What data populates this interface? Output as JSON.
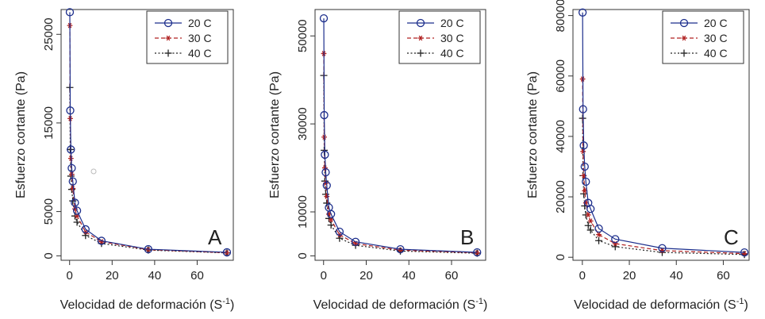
{
  "figure": {
    "panels": [
      {
        "label": "A",
        "ylabel": "Esfuerzo cortante (Pa)",
        "xlabel": "Velocidad de deformación (S",
        "xlabel_sup": "-1",
        "xlabel_end": ")"
      },
      {
        "label": "B",
        "ylabel": "Esfuerzo cortante (Pa)",
        "xlabel": "Velocidad de deformación (S",
        "xlabel_sup": "-1",
        "xlabel_end": ")"
      },
      {
        "label": "C",
        "ylabel": "Esfuerzo cortante (Pa)",
        "xlabel": "Velocidad de deformación (S",
        "xlabel_sup": "-1",
        "xlabel_end": ")"
      }
    ],
    "legend": [
      "20 C",
      "30 C",
      "40 C"
    ]
  },
  "chart_data": [
    {
      "type": "line",
      "label": "A",
      "xlabel": "Velocidad de deformación (S-1)",
      "ylabel": "Esfuerzo cortante (Pa)",
      "xlim": [
        -4,
        77
      ],
      "ylim": [
        -500,
        27800
      ],
      "xticks": [
        0,
        20,
        40,
        60
      ],
      "yticks": [
        0,
        5000,
        15000,
        25000
      ],
      "legend_position": "top-right",
      "grid": false,
      "series": [
        {
          "name": "20 C",
          "color": "#1c2e8c",
          "marker": "circle",
          "dash": "solid",
          "x": [
            0.1,
            0.3,
            0.6,
            1,
            1.5,
            2.5,
            3.5,
            7.5,
            15,
            37,
            74
          ],
          "y": [
            27500,
            16400,
            12000,
            9900,
            8400,
            6000,
            5100,
            3000,
            1700,
            750,
            400
          ]
        },
        {
          "name": "30 C",
          "color": "#b02020",
          "marker": "star",
          "dash": "dashed",
          "x": [
            0.1,
            0.3,
            0.6,
            1,
            1.5,
            2.5,
            3.5,
            7.5,
            15,
            37,
            74
          ],
          "y": [
            26000,
            15500,
            11000,
            9200,
            7600,
            5300,
            4500,
            2700,
            1600,
            700,
            350
          ]
        },
        {
          "name": "40 C",
          "color": "#222222",
          "marker": "plus",
          "dash": "dotted",
          "x": [
            0.1,
            0.3,
            0.6,
            1,
            1.5,
            2.5,
            3.5,
            7.5,
            15,
            37,
            74
          ],
          "y": [
            19000,
            12000,
            9000,
            7500,
            6200,
            4500,
            3800,
            2300,
            1400,
            650,
            330
          ]
        }
      ]
    },
    {
      "type": "line",
      "label": "B",
      "xlabel": "Velocidad de deformación (S-1)",
      "ylabel": "Esfuerzo cortante (Pa)",
      "xlim": [
        -4,
        76
      ],
      "ylim": [
        -1000,
        56000
      ],
      "xticks": [
        0,
        20,
        40,
        60
      ],
      "yticks": [
        0,
        10000,
        30000,
        50000
      ],
      "legend_position": "top-right",
      "grid": false,
      "series": [
        {
          "name": "20 C",
          "color": "#1c2e8c",
          "marker": "circle",
          "dash": "solid",
          "x": [
            0.1,
            0.3,
            0.6,
            1,
            1.5,
            2.5,
            3.5,
            7.5,
            15,
            36,
            72
          ],
          "y": [
            54000,
            32000,
            23000,
            19000,
            16000,
            11000,
            9500,
            5500,
            3200,
            1500,
            800
          ]
        },
        {
          "name": "30 C",
          "color": "#b02020",
          "marker": "star",
          "dash": "dashed",
          "x": [
            0.1,
            0.3,
            0.6,
            1,
            1.5,
            2.5,
            3.5,
            7.5,
            15,
            36,
            72
          ],
          "y": [
            46000,
            27000,
            20000,
            16500,
            13500,
            9500,
            8200,
            4800,
            2800,
            1300,
            700
          ]
        },
        {
          "name": "40 C",
          "color": "#222222",
          "marker": "plus",
          "dash": "dotted",
          "x": [
            0.1,
            0.3,
            0.6,
            1,
            1.5,
            2.5,
            3.5,
            7.5,
            15,
            36,
            72
          ],
          "y": [
            41000,
            24000,
            17000,
            14000,
            12000,
            8500,
            7000,
            4000,
            2400,
            1100,
            600
          ]
        }
      ]
    },
    {
      "type": "line",
      "label": "C",
      "xlabel": "Velocidad de deformación (S-1)",
      "ylabel": "Esfuerzo cortante (Pa)",
      "xlim": [
        -4,
        71
      ],
      "ylim": [
        -1000,
        82000
      ],
      "xticks": [
        0,
        20,
        40,
        60
      ],
      "yticks": [
        0,
        20000,
        40000,
        60000,
        80000
      ],
      "legend_position": "top-right",
      "grid": false,
      "series": [
        {
          "name": "20 C",
          "color": "#1c2e8c",
          "marker": "circle",
          "dash": "solid",
          "x": [
            0.1,
            0.3,
            0.6,
            1,
            1.5,
            2.5,
            3.5,
            7,
            14,
            34,
            69
          ],
          "y": [
            81000,
            49000,
            37000,
            30000,
            25000,
            18000,
            16000,
            9500,
            6000,
            3000,
            1600
          ]
        },
        {
          "name": "30 C",
          "color": "#b02020",
          "marker": "star",
          "dash": "dashed",
          "x": [
            0.1,
            0.3,
            0.6,
            1,
            1.5,
            2.5,
            3.5,
            7,
            14,
            34,
            69
          ],
          "y": [
            59000,
            35000,
            27000,
            22000,
            18000,
            14000,
            12000,
            7500,
            4500,
            2200,
            1200
          ]
        },
        {
          "name": "40 C",
          "color": "#222222",
          "marker": "plus",
          "dash": "dotted",
          "x": [
            0.1,
            0.3,
            0.6,
            1,
            1.5,
            2.5,
            3.5,
            7,
            14,
            34,
            69
          ],
          "y": [
            46000,
            27000,
            21000,
            17000,
            14000,
            10500,
            9000,
            5500,
            3500,
            1600,
            900
          ]
        }
      ]
    }
  ]
}
